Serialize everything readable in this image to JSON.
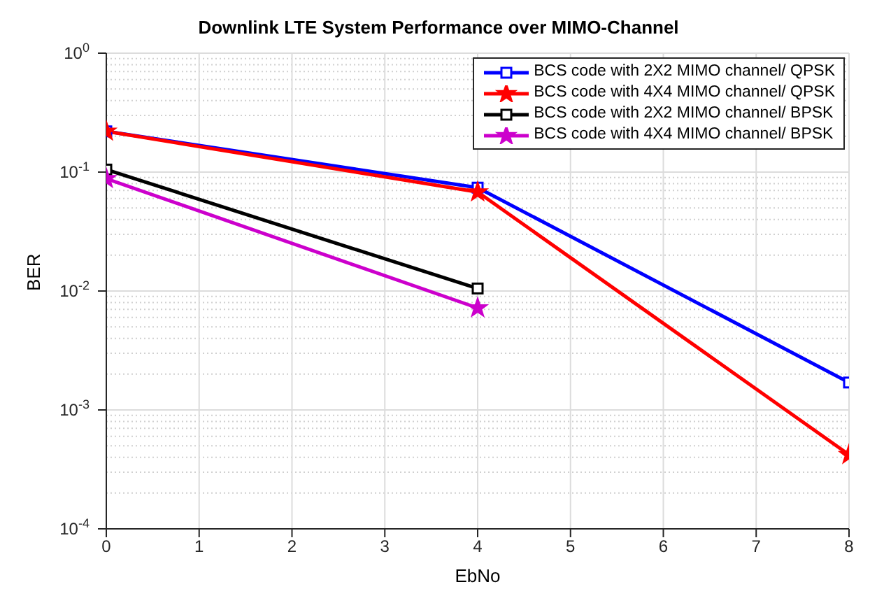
{
  "chart_data": {
    "type": "line",
    "title": "Downlink LTE System Performance over MIMO-Channel",
    "xlabel": "EbNo",
    "ylabel": "BER",
    "x": [
      0,
      4,
      8
    ],
    "series": [
      {
        "name": "BCS code with 2X2 MIMO channel/ QPSK",
        "color": "#0000ff",
        "marker": "square",
        "values": [
          0.22,
          0.074,
          0.0017
        ]
      },
      {
        "name": "BCS code with 4X4 MIMO channel/ QPSK",
        "color": "#ff0000",
        "marker": "star",
        "values": [
          0.22,
          0.068,
          0.00042
        ]
      },
      {
        "name": "BCS code with 2X2 MIMO channel/ BPSK",
        "color": "#000000",
        "marker": "square",
        "values": [
          0.105,
          0.0105,
          null
        ]
      },
      {
        "name": "BCS code with 4X4 MIMO channel/ BPSK",
        "color": "#cc00cc",
        "marker": "star",
        "values": [
          0.088,
          0.0072,
          null
        ]
      }
    ],
    "xlim": [
      0,
      8
    ],
    "xticks": [
      0,
      1,
      2,
      3,
      4,
      5,
      6,
      7,
      8
    ],
    "ylim": [
      0.0001,
      1
    ],
    "yticks": [
      {
        "value": 0.0001,
        "label": "10$^{-4}$"
      },
      {
        "value": 0.001,
        "label": "10$^{-3}$"
      },
      {
        "value": 0.01,
        "label": "10$^{-2}$"
      },
      {
        "value": 0.1,
        "label": "10$^{-1}$"
      },
      {
        "value": 1,
        "label": "10$^{0}$"
      }
    ],
    "log": "y",
    "grid": true,
    "legend": "top right",
    "line_style": "solid"
  }
}
